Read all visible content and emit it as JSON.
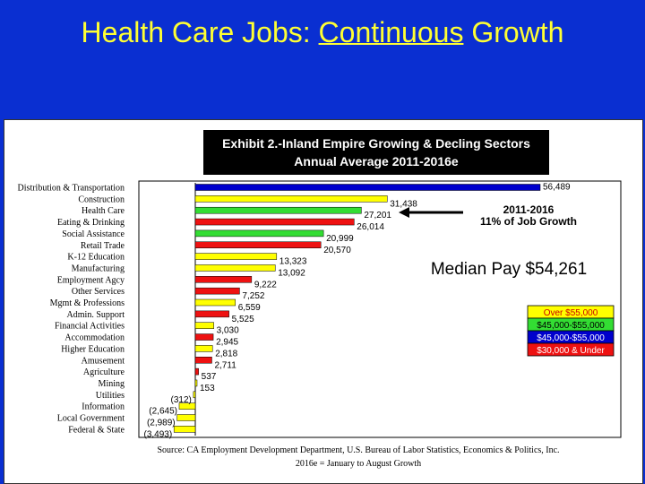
{
  "slide": {
    "title_part1": "Health Care Jobs: ",
    "title_underlined": "Continuous",
    "title_part2": " Growth"
  },
  "chart_data": {
    "type": "bar",
    "orientation": "horizontal",
    "title_line1": "Exhibit 2.-Inland Empire Growing & Decling Sectors",
    "title_line2": "Annual Average 2011-2016e",
    "categories": [
      "Distribution & Transportation",
      "Construction",
      "Health Care",
      "Eating & Drinking",
      "Social Assistance",
      "Retail Trade",
      "K-12 Education",
      "Manufacturing",
      "Employment Agcy",
      "Other Services",
      "Mgmt & Professions",
      "Admin. Support",
      "Financial Activities",
      "Accommodation",
      "Higher Education",
      "Amusement",
      "Agriculture",
      "Mining",
      "Utilities",
      "Information",
      "Local Government",
      "Federal & State"
    ],
    "values": [
      56489,
      31438,
      27201,
      26014,
      20999,
      20570,
      13323,
      13092,
      9222,
      7252,
      6559,
      5525,
      3030,
      2945,
      2818,
      2711,
      537,
      153,
      -312,
      -2645,
      -2989,
      -3493
    ],
    "value_labels": [
      "56,489",
      "31,438",
      "27,201",
      "26,014",
      "20,999",
      "20,570",
      "13,323",
      "13,092",
      "9,222",
      "7,252",
      "6,559",
      "5,525",
      "3,030",
      "2,945",
      "2,818",
      "2,711",
      "537",
      "153",
      "(312)",
      "(2,645)",
      "(2,989)",
      "(3,493)"
    ],
    "pay_band": [
      "$45k-55k",
      "Over",
      "45-55",
      "30-",
      "45-55",
      "30-",
      "Over",
      "Over",
      "30-",
      "30-",
      "Over",
      "30-",
      "Over",
      "30-",
      "Over",
      "30-",
      "30-",
      "Over",
      "Over",
      "Over",
      "Over",
      "Over"
    ],
    "legend": [
      {
        "label": "Over $55,000",
        "color": "#ffff00",
        "text_color": "#cc0000"
      },
      {
        "label": "$45,000-$55,000",
        "color": "#33dd33",
        "text_color": "#000000"
      },
      {
        "label": "$45,000-$55,000",
        "color": "#0000cc",
        "text_color": "#ffffff"
      },
      {
        "label": "$30,000 & Under",
        "color": "#ee1111",
        "text_color": "#ffffff"
      }
    ],
    "band_colors": {
      "Over": "#ffff00",
      "45-55": "#33dd33",
      "$45k-55k": "#0000cc",
      "30-": "#ee1111"
    },
    "annotation_growth_line1": "2011-2016",
    "annotation_growth_line2": "11% of Job Growth",
    "annotation_median": "Median Pay $54,261",
    "source_line1": "Source: CA Employment Development Department, U.S. Bureau of Labor Statistics, Economics & Politics, Inc.",
    "source_line2": "2016e = January to August Growth"
  }
}
